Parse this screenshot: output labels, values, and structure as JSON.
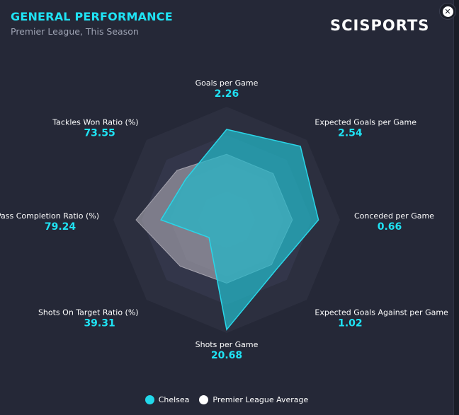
{
  "header": {
    "title": "GENERAL PERFORMANCE",
    "subtitle": "Premier League, This Season",
    "brand": "SCISPORTS",
    "close_icon": "close-icon"
  },
  "colors": {
    "accent": "#1fe3f4",
    "team_fill": "#22b8c9",
    "average_fill": "#b9b6bf",
    "ring_1": "#2c2f3f",
    "ring_2": "#33364a",
    "ring_3": "#3a3d51",
    "ring_4": "#414459"
  },
  "chart_data": {
    "type": "radar",
    "axes": [
      "Goals per Game",
      "Expected Goals per Game",
      "Conceded per Game",
      "Expected Goals Against per Game",
      "Shots per Game",
      "Shots On Target Ratio (%)",
      "Pass Completion Ratio (%)",
      "Tackles Won Ratio (%)"
    ],
    "value_labels": [
      "2.26",
      "2.54",
      "0.66",
      "1.02",
      "20.68",
      "39.31",
      "79.24",
      "73.55"
    ],
    "series": [
      {
        "name": "Chelsea",
        "values": [
          2.26,
          2.54,
          0.66,
          1.02,
          20.68,
          39.31,
          79.24,
          73.55
        ],
        "relative": [
          0.8,
          0.92,
          0.81,
          0.62,
          0.97,
          0.22,
          0.58,
          0.51
        ]
      },
      {
        "name": "Premier League Average",
        "relative": [
          0.58,
          0.58,
          0.58,
          0.56,
          0.56,
          0.58,
          0.8,
          0.62
        ]
      }
    ],
    "rings": 4,
    "grid": true,
    "legend_position": "bottom"
  },
  "legend": {
    "items": [
      {
        "label": "Chelsea",
        "color": "#22d8ea"
      },
      {
        "label": "Premier League Average",
        "color": "#ffffff"
      }
    ]
  }
}
